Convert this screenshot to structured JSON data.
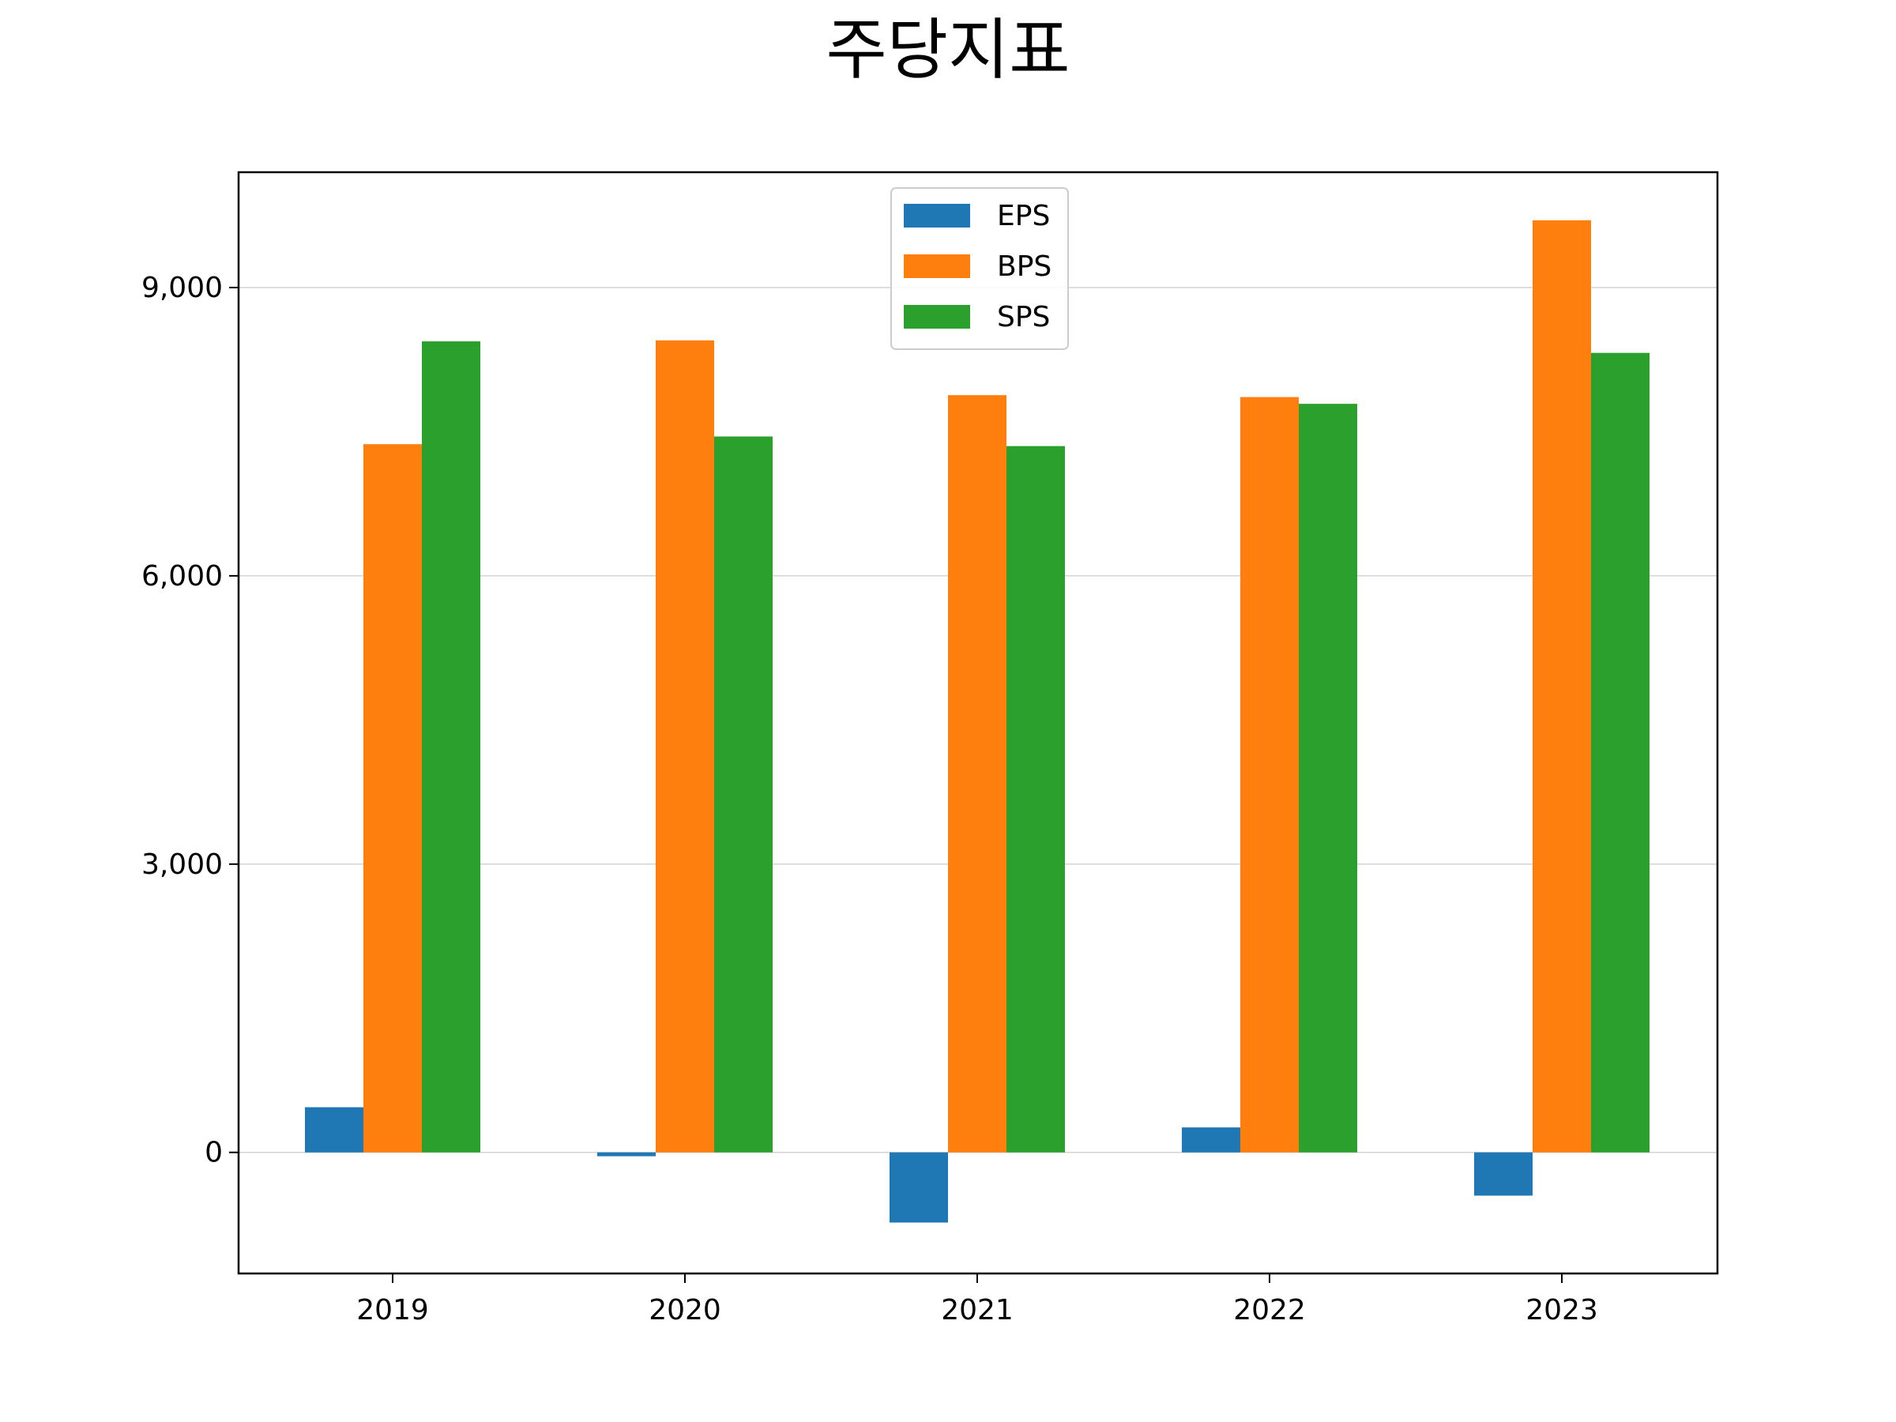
{
  "chart_data": {
    "type": "bar",
    "title": "주당지표",
    "xlabel": "",
    "ylabel": "",
    "categories": [
      "2019",
      "2020",
      "2021",
      "2022",
      "2023"
    ],
    "series": [
      {
        "name": "EPS",
        "color": "#1f77b4",
        "values": [
          470,
          -40,
          -730,
          260,
          -450
        ]
      },
      {
        "name": "BPS",
        "color": "#ff7f0e",
        "values": [
          7370,
          8450,
          7880,
          7860,
          9700
        ]
      },
      {
        "name": "SPS",
        "color": "#2ca02c",
        "values": [
          8440,
          7450,
          7350,
          7790,
          8320
        ]
      }
    ],
    "ylim": [
      -1260,
      10200
    ],
    "yticks": [
      0,
      3000,
      6000,
      9000
    ],
    "ytick_labels": [
      "0",
      "3,000",
      "6,000",
      "9,000"
    ],
    "grid": "horizontal",
    "legend_position": "top-center"
  }
}
